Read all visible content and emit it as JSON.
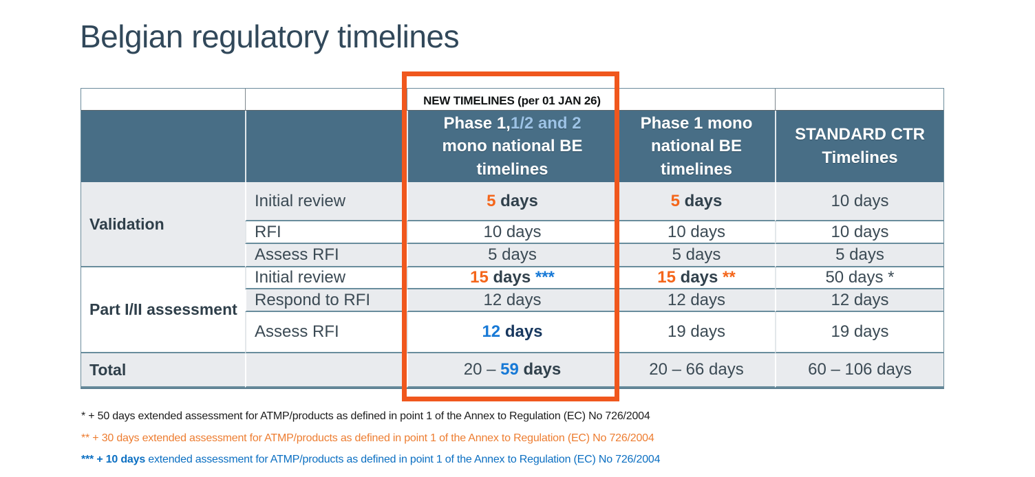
{
  "title": "Belgian regulatory timelines",
  "colors": {
    "header_bg": "#486E86",
    "accent_orange": "#F4661B",
    "accent_blue": "#1779D6",
    "light_blue_header_text": "#9DC3E6",
    "band_gray": "#E9EBEE",
    "highlight_rect_orange": "#F0571D",
    "footnote_orange": "#ED7D31",
    "footnote_blue": "#0B6FC2"
  },
  "table": {
    "new_timelines_label": "NEW TIMELINES (per 01 JAN 26)",
    "headers": {
      "phase12_prefix": "Phase 1,",
      "phase12_highlight": "1/2 and 2",
      "phase12_rest": "mono national BE timelines",
      "phase1": "Phase 1 mono national BE timelines",
      "standard": "STANDARD CTR Timelines"
    },
    "body": [
      {
        "section": "Validation",
        "section_rowspan": 3,
        "step": "Initial review",
        "cells": [
          [
            {
              "t": "5",
              "s": "orange"
            },
            {
              "t": " days",
              "s": "darkbold"
            }
          ],
          [
            {
              "t": "5",
              "s": "orange"
            },
            {
              "t": " days",
              "s": "darkbold"
            }
          ],
          [
            {
              "t": "10 days",
              "s": "plain"
            }
          ]
        ]
      },
      {
        "step": "RFI",
        "cells": [
          [
            {
              "t": "10 days",
              "s": "plain"
            }
          ],
          [
            {
              "t": "10 days",
              "s": "plain"
            }
          ],
          [
            {
              "t": "10 days",
              "s": "plain"
            }
          ]
        ]
      },
      {
        "step": "Assess RFI",
        "cells": [
          [
            {
              "t": "5 days",
              "s": "plain"
            }
          ],
          [
            {
              "t": "5 days",
              "s": "plain"
            }
          ],
          [
            {
              "t": "5 days",
              "s": "plain"
            }
          ]
        ]
      },
      {
        "section": "Part I/II assessment",
        "section_rowspan": 3,
        "step": "Initial review",
        "cells": [
          [
            {
              "t": "15",
              "s": "orange"
            },
            {
              "t": " days ",
              "s": "darkbold"
            },
            {
              "t": "***",
              "s": "blue"
            }
          ],
          [
            {
              "t": "15",
              "s": "orange"
            },
            {
              "t": " days ",
              "s": "darkbold"
            },
            {
              "t": "**",
              "s": "orange"
            }
          ],
          [
            {
              "t": "50 days *",
              "s": "plain"
            }
          ]
        ]
      },
      {
        "step": "Respond to RFI",
        "cells": [
          [
            {
              "t": "12 days",
              "s": "plain"
            }
          ],
          [
            {
              "t": "12 days",
              "s": "plain"
            }
          ],
          [
            {
              "t": "12 days",
              "s": "plain"
            }
          ]
        ]
      },
      {
        "step": "Assess RFI",
        "cells": [
          [
            {
              "t": "12",
              "s": "blue"
            },
            {
              "t": " days",
              "s": "navybold"
            }
          ],
          [
            {
              "t": "19 days",
              "s": "plain"
            }
          ],
          [
            {
              "t": "19 days",
              "s": "plain"
            }
          ]
        ]
      },
      {
        "section": "Total",
        "section_rowspan": 1,
        "step": "",
        "total": true,
        "cells": [
          [
            {
              "t": "20 – ",
              "s": "plain"
            },
            {
              "t": "59",
              "s": "blue"
            },
            {
              "t": " days",
              "s": "darkbold"
            }
          ],
          [
            {
              "t": "20 – 66 days",
              "s": "plain"
            }
          ],
          [
            {
              "t": "60 – 106 days",
              "s": "plain"
            }
          ]
        ]
      }
    ]
  },
  "footnotes": {
    "fn1": "* + 50 days extended assessment for ATMP/products as defined in point 1 of the Annex to Regulation (EC) No 726/2004",
    "fn2": "** + 30 days extended assessment for ATMP/products as defined in point 1 of the Annex to Regulation (EC) No 726/2004",
    "fn3_bold": "*** + 10 days",
    "fn3_rest": " extended assessment for ATMP/products as defined in point 1 of the Annex to Regulation (EC) No 726/2004"
  }
}
